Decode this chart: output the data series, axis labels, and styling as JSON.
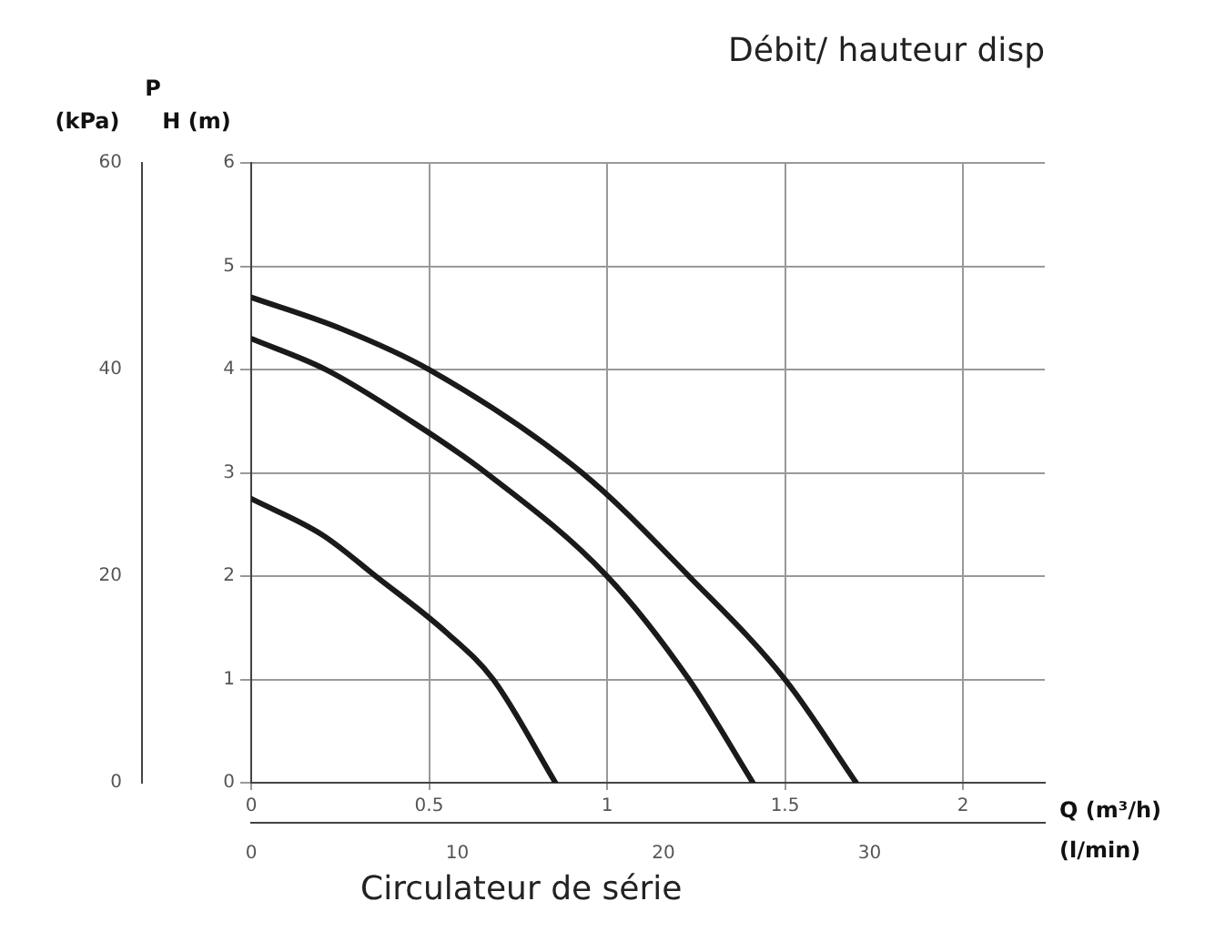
{
  "chart_data": {
    "type": "line",
    "title": "Débit/ hauteur disp",
    "xlabel": "Q (m³/h)",
    "ylabel": "H (m)",
    "y2label": "(kPa)",
    "x2label": "(l/min)",
    "annotations": [
      "P",
      "Circulateur de série"
    ],
    "xlim": [
      0,
      2.23
    ],
    "xticks": [
      0,
      0.5,
      1,
      1.5,
      2
    ],
    "x2lim": [
      0,
      38.5
    ],
    "x2ticks": [
      0,
      10,
      20,
      30
    ],
    "ylim": [
      0,
      6
    ],
    "yticks": [
      0,
      1,
      2,
      3,
      4,
      5,
      6
    ],
    "y2lim": [
      0,
      60
    ],
    "y2ticks": [
      0,
      20,
      40,
      60
    ],
    "grid": true,
    "legend": false,
    "marker": "none",
    "line_style": "solid",
    "series": [
      {
        "color": "#1a1a1a",
        "x": [
          0,
          0.25,
          0.5,
          0.93,
          1.23,
          1.5,
          1.7
        ],
        "values": [
          4.7,
          4.4,
          4,
          3,
          2,
          1,
          0
        ]
      },
      {
        "color": "#1a1a1a",
        "x": [
          0,
          0.21,
          0.45,
          0.66,
          1.0,
          1.23,
          1.41
        ],
        "values": [
          4.3,
          4,
          3.5,
          3,
          2,
          1,
          0
        ]
      },
      {
        "color": "#1a1a1a",
        "x": [
          0,
          0.2,
          0.35,
          0.55,
          0.68,
          0.855
        ],
        "values": [
          2.75,
          2.4,
          2,
          1.45,
          1,
          0
        ]
      }
    ]
  }
}
